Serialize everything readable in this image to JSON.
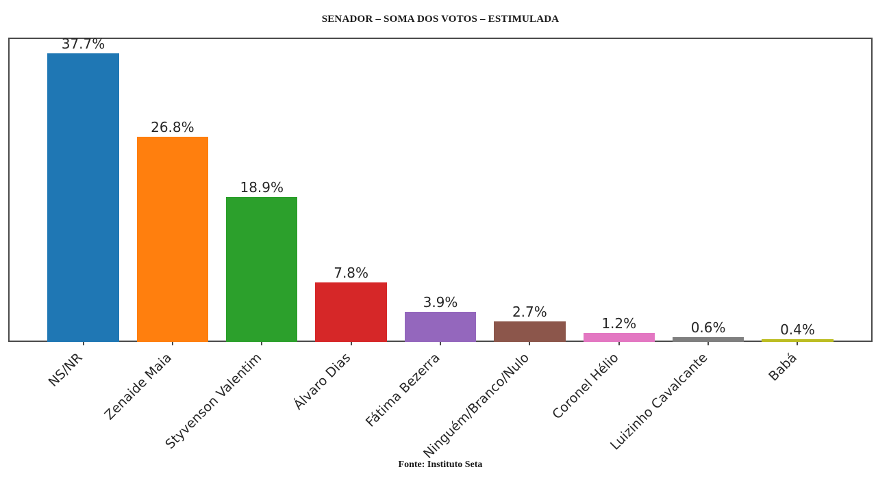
{
  "chart_data": {
    "type": "bar",
    "title": "SENADOR – SOMA DOS VOTOS – ESTIMULADA",
    "source": "Fonte: Instituto Seta",
    "categories": [
      "NS/NR",
      "Zenaide Maia",
      "Styvenson Valentim",
      "Álvaro Dias",
      "Fátima Bezerra",
      "Ninguém/Branco/Nulo",
      "Coronel Hélio",
      "Luizinho Cavalcante",
      "Babá"
    ],
    "values": [
      37.7,
      26.8,
      18.9,
      7.8,
      3.9,
      2.7,
      1.2,
      0.6,
      0.4
    ],
    "value_labels": [
      "37.7%",
      "26.8%",
      "18.9%",
      "7.8%",
      "3.9%",
      "2.7%",
      "1.2%",
      "0.6%",
      "0.4%"
    ],
    "bar_colors": [
      "#1f77b4",
      "#ff7f0e",
      "#2ca02c",
      "#d62728",
      "#9467bd",
      "#8c564b",
      "#e377c2",
      "#7f7f7f",
      "#bcbd22"
    ],
    "xlabel": "",
    "ylabel": "",
    "ylim": [
      0,
      39.75
    ],
    "grid": false,
    "legend": null,
    "x_tick_rotation_deg": 45,
    "text_color": "#262626",
    "spine_color": "#4a4a4a"
  }
}
